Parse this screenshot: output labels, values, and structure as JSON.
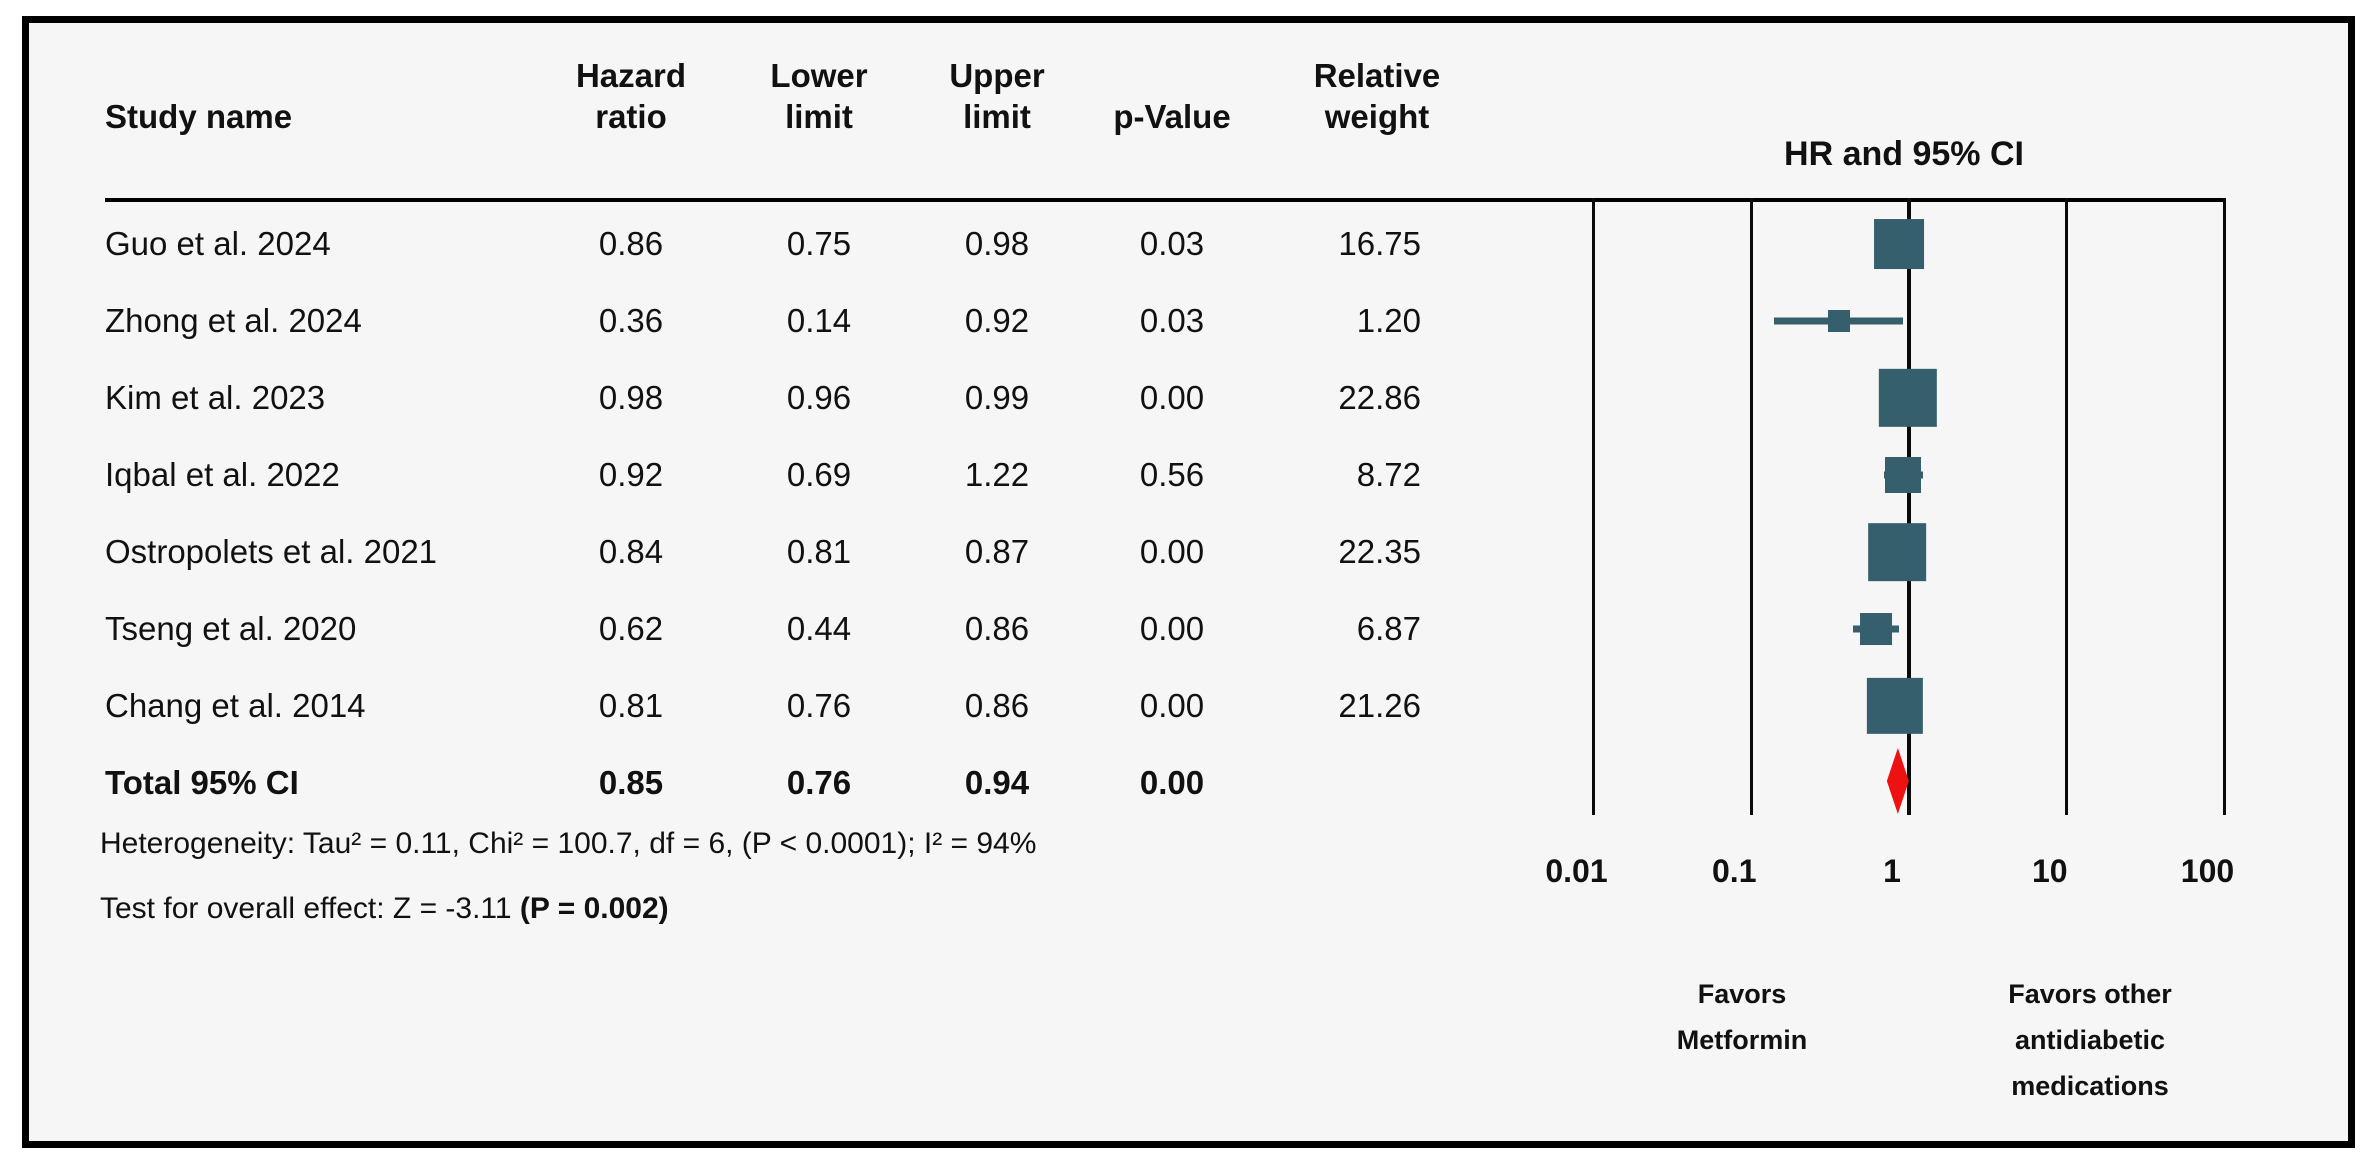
{
  "header": {
    "study": "Study name",
    "hr": "Hazard ratio",
    "lower": "Lower limit",
    "upper": "Upper limit",
    "p": "p-Value",
    "weight": "Relative weight"
  },
  "footnotes": {
    "heterogeneity": "Heterogeneity:  Tau² = 0.11, Chi² = 100.7, df = 6, (P < 0.0001); I² = 94%",
    "test_prefix": "Test for overall effect: Z = -3.11 ",
    "test_bold": "(P = 0.002)"
  },
  "axis": {
    "favors_left": "Favors\nMetformin",
    "favors_right": "Favors other\nantidiabetic\nmedications"
  },
  "colors": {
    "marker": "#365f6e",
    "diamond": "#ee1111",
    "background": "#f6f6f6",
    "line": "#000000"
  },
  "chart_data": {
    "type": "forest",
    "title": "HR and 95% CI",
    "x_scale": "log10",
    "x_range": [
      0.01,
      100
    ],
    "x_ticks": [
      0.01,
      0.1,
      1,
      10,
      100
    ],
    "tick_labels": [
      "0.01",
      "0.1",
      "1",
      "10",
      "100"
    ],
    "grid": "vertical-lines-at-ticks",
    "studies": [
      {
        "name": "Guo et al. 2024",
        "hr": 0.86,
        "lower": 0.75,
        "upper": 0.98,
        "p_value": "0.03",
        "weight": 16.75
      },
      {
        "name": "Zhong et al. 2024",
        "hr": 0.36,
        "lower": 0.14,
        "upper": 0.92,
        "p_value": "0.03",
        "weight": 1.2
      },
      {
        "name": "Kim et al. 2023",
        "hr": 0.98,
        "lower": 0.96,
        "upper": 0.99,
        "p_value": "0.00",
        "weight": 22.86
      },
      {
        "name": "Iqbal et al. 2022",
        "hr": 0.92,
        "lower": 0.69,
        "upper": 1.22,
        "p_value": "0.56",
        "weight": 8.72
      },
      {
        "name": "Ostropolets et al. 2021",
        "hr": 0.84,
        "lower": 0.81,
        "upper": 0.87,
        "p_value": "0.00",
        "weight": 22.35
      },
      {
        "name": "Tseng et al. 2020",
        "hr": 0.62,
        "lower": 0.44,
        "upper": 0.86,
        "p_value": "0.00",
        "weight": 6.87
      },
      {
        "name": "Chang et al. 2014",
        "hr": 0.81,
        "lower": 0.76,
        "upper": 0.86,
        "p_value": "0.00",
        "weight": 21.26
      }
    ],
    "total": {
      "name": "Total 95% CI",
      "hr": 0.85,
      "lower": 0.76,
      "upper": 0.94,
      "p_value": "0.00"
    }
  }
}
